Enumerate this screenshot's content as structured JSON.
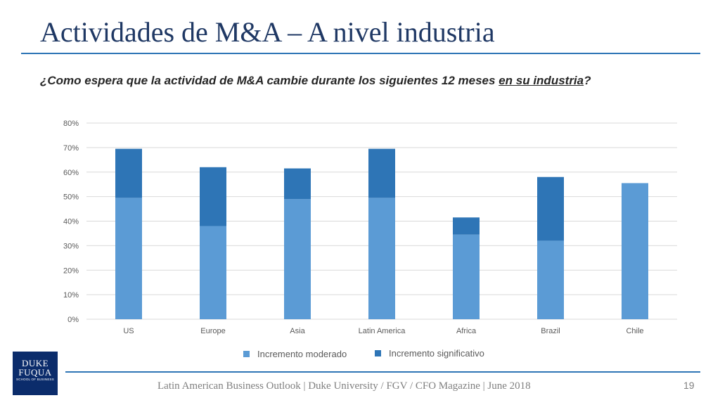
{
  "slide": {
    "title": "Actividades de M&A – A nivel industria",
    "question_pre": "¿Como espera que la actividad de M&A cambie durante los siguientes 12 meses ",
    "question_underlined": "en su industria",
    "question_post": "?",
    "footer": "Latin American Business Outlook | Duke University / FGV / CFO Magazine | June 2018",
    "page_number": "19",
    "logo": {
      "line1": "DUKE",
      "line2": "FUQUA",
      "line3": "SCHOOL OF BUSINESS"
    }
  },
  "chart_data": {
    "type": "bar",
    "stacked": true,
    "categories": [
      "US",
      "Europe",
      "Asia",
      "Latin America",
      "Africa",
      "Brazil",
      "Chile"
    ],
    "series": [
      {
        "name": "Incremento moderado",
        "values": [
          49.5,
          38,
          49,
          49.5,
          34.5,
          32,
          55.5
        ],
        "color": "#5b9bd5"
      },
      {
        "name": "Incremento significativo",
        "values": [
          20,
          24,
          12.5,
          20,
          7,
          26,
          0
        ],
        "color": "#2e75b6"
      }
    ],
    "ylim": [
      0,
      80
    ],
    "yticks": [
      0,
      10,
      20,
      30,
      40,
      50,
      60,
      70,
      80
    ],
    "ytick_labels": [
      "0%",
      "10%",
      "20%",
      "30%",
      "40%",
      "50%",
      "60%",
      "70%",
      "80%"
    ],
    "grid": true,
    "legend_position": "bottom",
    "gridline_color": "#d9d9d9",
    "tick_label_color": "#595959"
  }
}
